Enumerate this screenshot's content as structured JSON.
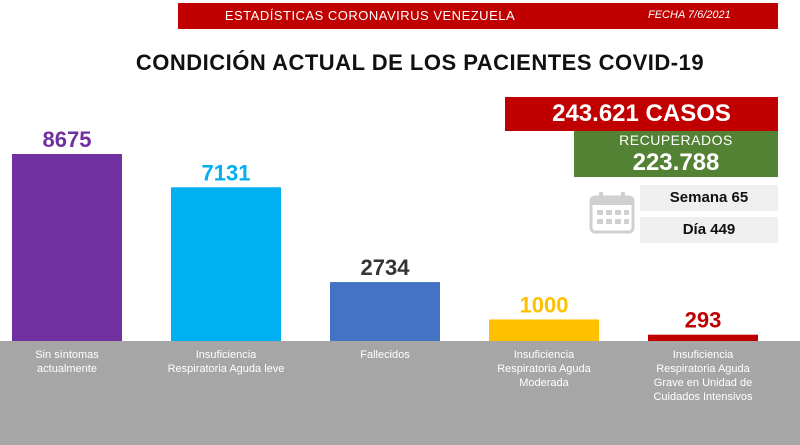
{
  "header": {
    "title": "ESTADÍSTICAS CORONAVIRUS VENEZUELA",
    "date": "FECHA 7/6/2021"
  },
  "main_title": "CONDICIÓN ACTUAL DE LOS PACIENTES COVID-19",
  "summary": {
    "cases": "243.621 CASOS",
    "recovered_label": "RECUPERADOS",
    "recovered_value": "223.788",
    "week": "Semana 65",
    "day": "Día 449",
    "calendar_icon": "calendar-icon"
  },
  "colors": {
    "red": "#c00000",
    "green": "#548235",
    "label_band": "#a6a6a6"
  },
  "chart_data": {
    "type": "bar",
    "categories": [
      "Sin síntomas actualmente",
      "Insuficiencia Respiratoria Aguda leve",
      "Fallecidos",
      "Insuficiencia Respiratoria Aguda Moderada",
      "Insuficiencia Respiratoria Aguda Grave en Unidad de Cuidados Intensivos"
    ],
    "category_lines": [
      [
        "Sin síntomas",
        "actualmente"
      ],
      [
        "Insuficiencia",
        "Respiratoria Aguda leve"
      ],
      [
        "Fallecidos"
      ],
      [
        "Insuficiencia",
        "Respiratoria Aguda",
        "Moderada"
      ],
      [
        "Insuficiencia",
        "Respiratoria Aguda",
        "Grave en Unidad de",
        "Cuidados Intensivos"
      ]
    ],
    "values": [
      8675,
      7131,
      2734,
      1000,
      293
    ],
    "value_labels": [
      "8675",
      "7131",
      "2734",
      "1000",
      "293"
    ],
    "bar_colors": [
      "#7030a0",
      "#00b0f0",
      "#4472c4",
      "#ffc000",
      "#c00000"
    ],
    "label_colors": [
      "#7030a0",
      "#00b0f0",
      "#333333",
      "#ffc000",
      "#c00000"
    ]
  }
}
